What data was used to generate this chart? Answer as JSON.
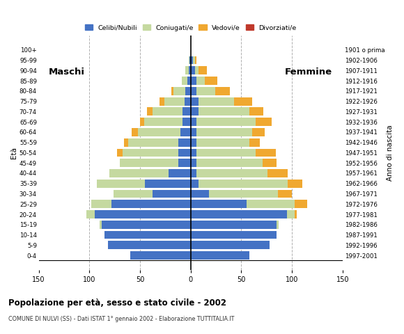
{
  "age_groups": [
    "0-4",
    "5-9",
    "10-14",
    "15-19",
    "20-24",
    "25-29",
    "30-34",
    "35-39",
    "40-44",
    "45-49",
    "50-54",
    "55-59",
    "60-64",
    "65-69",
    "70-74",
    "75-79",
    "80-84",
    "85-89",
    "90-94",
    "95-99",
    "100+"
  ],
  "birth_years": [
    "1997-2001",
    "1992-1996",
    "1987-1991",
    "1982-1986",
    "1977-1981",
    "1972-1976",
    "1967-1971",
    "1962-1966",
    "1957-1961",
    "1952-1956",
    "1947-1951",
    "1942-1946",
    "1937-1941",
    "1932-1936",
    "1927-1931",
    "1922-1926",
    "1917-1921",
    "1912-1916",
    "1907-1911",
    "1902-1906",
    "1901 o prima"
  ],
  "males": {
    "celibinubili": [
      60,
      82,
      85,
      88,
      95,
      78,
      38,
      45,
      22,
      12,
      12,
      12,
      10,
      8,
      8,
      6,
      5,
      3,
      2,
      1,
      0
    ],
    "coniugati": [
      0,
      0,
      0,
      2,
      8,
      20,
      38,
      48,
      58,
      58,
      55,
      50,
      42,
      38,
      30,
      20,
      12,
      6,
      3,
      1,
      0
    ],
    "vedovi": [
      0,
      0,
      0,
      0,
      0,
      0,
      0,
      0,
      0,
      0,
      6,
      4,
      6,
      4,
      5,
      5,
      2,
      0,
      0,
      0,
      0
    ],
    "divorziati": [
      0,
      0,
      0,
      0,
      0,
      0,
      0,
      0,
      0,
      0,
      0,
      0,
      0,
      0,
      0,
      0,
      0,
      0,
      0,
      0,
      0
    ]
  },
  "females": {
    "celibinubili": [
      58,
      78,
      85,
      85,
      95,
      55,
      18,
      8,
      6,
      6,
      6,
      6,
      6,
      6,
      8,
      8,
      6,
      6,
      4,
      2,
      0
    ],
    "coniugate": [
      0,
      0,
      0,
      2,
      8,
      48,
      68,
      88,
      70,
      65,
      58,
      52,
      55,
      58,
      50,
      35,
      18,
      8,
      4,
      2,
      0
    ],
    "vedove": [
      0,
      0,
      0,
      0,
      2,
      12,
      14,
      14,
      20,
      14,
      20,
      10,
      12,
      16,
      14,
      18,
      15,
      12,
      8,
      2,
      0
    ],
    "divorziate": [
      0,
      0,
      0,
      0,
      0,
      0,
      0,
      0,
      0,
      0,
      0,
      0,
      0,
      0,
      0,
      0,
      0,
      0,
      0,
      0,
      0
    ]
  },
  "colors": {
    "celibinubili": "#4472c4",
    "coniugati": "#c5d9a0",
    "vedovi": "#f0a830",
    "divorziati": "#c0392b"
  },
  "title": "Popolazione per età, sesso e stato civile - 2002",
  "subtitle": "COMUNE DI NULVI (SS) - Dati ISTAT 1° gennaio 2002 - Elaborazione TUTTITALIA.IT",
  "xlabel_left": "Maschi",
  "xlabel_right": "Femmine",
  "ylabel_left": "Età",
  "ylabel_right": "Anno di nascita",
  "xlim": 150,
  "legend_labels": [
    "Celibi/Nubili",
    "Coniugati/e",
    "Vedovi/e",
    "Divorziati/e"
  ],
  "background_color": "#ffffff",
  "grid_color": "#b0b0b0"
}
